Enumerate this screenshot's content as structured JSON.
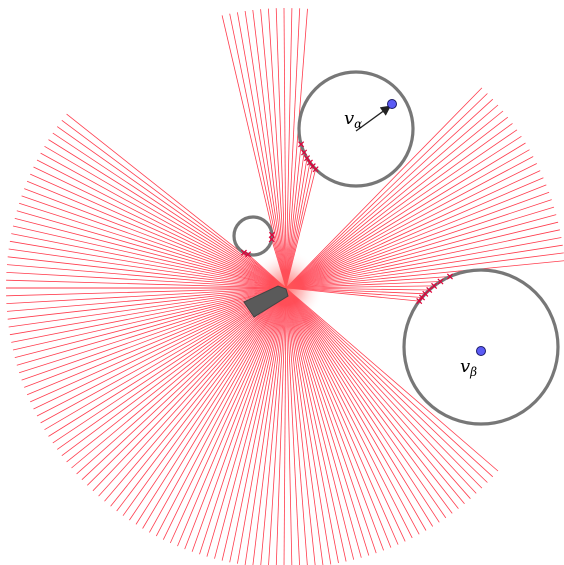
{
  "scene": {
    "ray_color": "#ff1a2e",
    "hit_color": "#e0003a",
    "obstacle_stroke": "#777777",
    "robot_color": "#5a5a5a",
    "center_glow": "#ff6666",
    "point_color": "#5b5bf5"
  },
  "obstacles": [
    {
      "id": "alpha",
      "label_base": "v",
      "label_sub": "α",
      "has_velocity_arrow": true
    },
    {
      "id": "beta",
      "label_base": "v",
      "label_sub": "β",
      "has_velocity_arrow": false
    },
    {
      "id": "small",
      "label_base": "",
      "label_sub": "",
      "has_velocity_arrow": false
    }
  ]
}
